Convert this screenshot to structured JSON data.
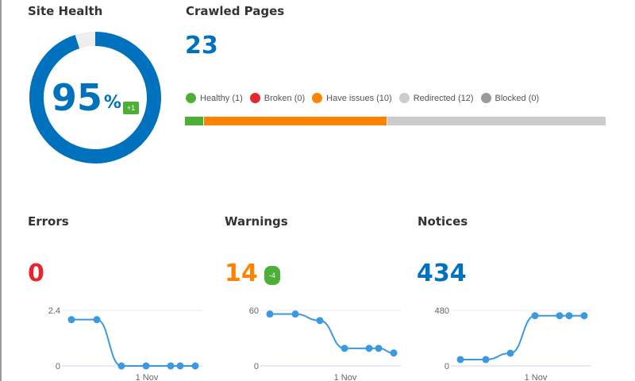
{
  "site_health": {
    "title": "Site Health",
    "value": "95",
    "unit": "%",
    "percent": 95,
    "change": "+1",
    "color": "#0071bc",
    "track_color": "#eeeeee"
  },
  "crawled": {
    "title": "Crawled Pages",
    "total": "23",
    "legend": [
      {
        "label": "Healthy (1)",
        "count": 1,
        "color": "#4caf36"
      },
      {
        "label": "Broken (0)",
        "count": 0,
        "color": "#e5262d"
      },
      {
        "label": "Have issues (10)",
        "count": 10,
        "color": "#ff8200"
      },
      {
        "label": "Redirected (12)",
        "count": 12,
        "color": "#cccccc"
      },
      {
        "label": "Blocked (0)",
        "count": 0,
        "color": "#999999"
      }
    ]
  },
  "errors": {
    "title": "Errors",
    "value": "0",
    "color": "#e5262d"
  },
  "warnings": {
    "title": "Warnings",
    "value": "14",
    "change": "-4",
    "color": "#ff8200"
  },
  "notices": {
    "title": "Notices",
    "value": "434",
    "color": "#0071bc"
  },
  "chart_data": [
    {
      "type": "line",
      "ylim": [
        0,
        2.4
      ],
      "yticks": [
        "0",
        "2.4"
      ],
      "xtick": "1 Nov",
      "values": [
        2,
        2,
        0,
        0,
        0,
        0,
        0
      ]
    },
    {
      "type": "line",
      "ylim": [
        0,
        60
      ],
      "yticks": [
        "0",
        "60"
      ],
      "xtick": "1 Nov",
      "values": [
        56,
        56,
        49,
        19,
        19,
        19,
        14
      ]
    },
    {
      "type": "line",
      "ylim": [
        0,
        480
      ],
      "yticks": [
        "0",
        "480"
      ],
      "xtick": "1 Nov",
      "values": [
        55,
        55,
        110,
        434,
        434,
        434,
        434
      ]
    }
  ]
}
